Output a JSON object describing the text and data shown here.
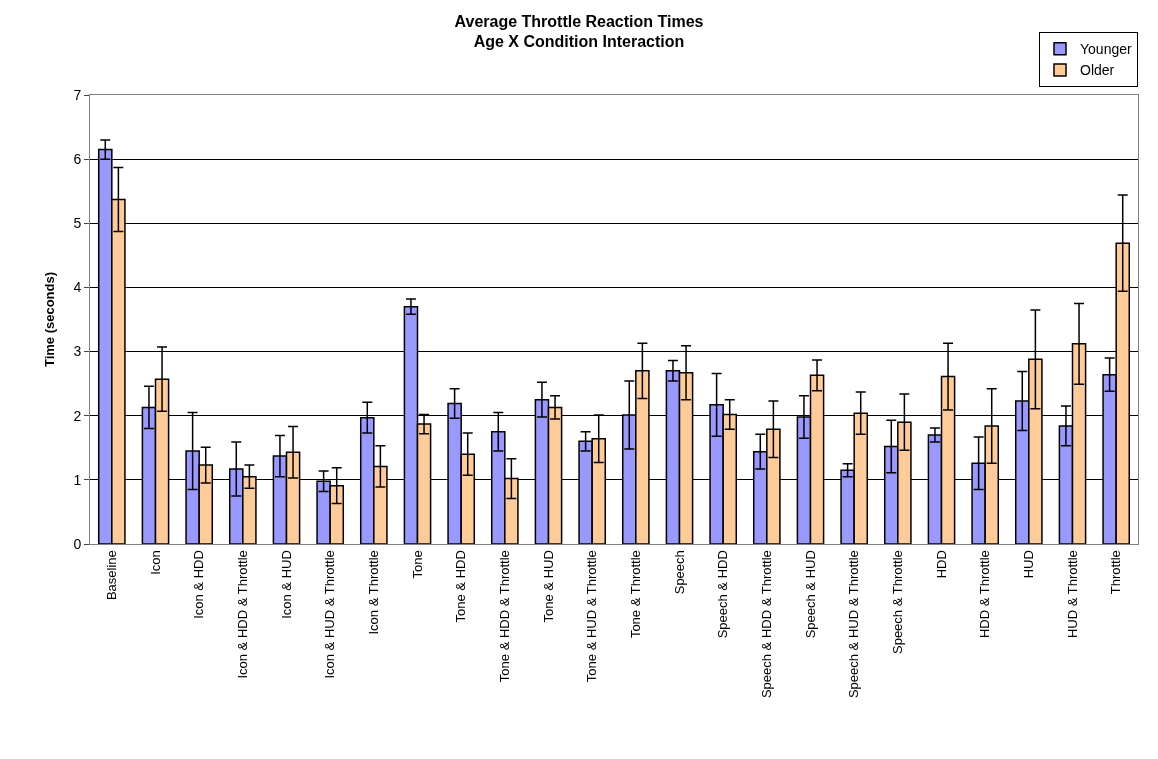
{
  "chart_data": {
    "type": "bar",
    "title": "Average Throttle Reaction Times\nAge X Condition Interaction",
    "ylabel": "Time (seconds)",
    "categories": [
      "Baseline",
      "Icon",
      "Icon & HDD",
      "Icon & HDD & Throttle",
      "Icon & HUD",
      "Icon & HUD & Throttle",
      "Icon & Throttle",
      "Tone",
      "Tone & HDD",
      "Tone & HDD & Throttle",
      "Tone & HUD",
      "Tone & HUD & Throttle",
      "Tone & Throttle",
      "Speech",
      "Speech & HDD",
      "Speech & HDD & Throttle",
      "Speech & HUD",
      "Speech & HUD & Throttle",
      "Speech & Throttle",
      "HDD",
      "HDD & Throttle",
      "HUD",
      "HUD & Throttle",
      "Throttle"
    ],
    "series": [
      {
        "name": "Younger",
        "color": "#9999ff",
        "values": [
          6.15,
          2.13,
          1.45,
          1.17,
          1.37,
          0.98,
          1.97,
          3.7,
          2.19,
          1.75,
          2.25,
          1.6,
          2.01,
          2.7,
          2.17,
          1.44,
          1.98,
          1.15,
          1.52,
          1.7,
          1.26,
          2.23,
          1.84,
          2.64
        ],
        "errors": [
          0.15,
          0.33,
          0.6,
          0.42,
          0.32,
          0.16,
          0.24,
          0.12,
          0.23,
          0.3,
          0.27,
          0.15,
          0.53,
          0.16,
          0.49,
          0.27,
          0.33,
          0.1,
          0.41,
          0.11,
          0.41,
          0.46,
          0.31,
          0.26
        ]
      },
      {
        "name": "Older",
        "color": "#ffcc99",
        "values": [
          5.37,
          2.57,
          1.23,
          1.05,
          1.43,
          0.91,
          1.21,
          1.87,
          1.4,
          1.02,
          2.13,
          1.64,
          2.7,
          2.67,
          2.02,
          1.79,
          2.63,
          2.04,
          1.9,
          2.61,
          1.84,
          2.88,
          3.12,
          4.69
        ],
        "errors": [
          0.5,
          0.5,
          0.28,
          0.18,
          0.4,
          0.28,
          0.32,
          0.15,
          0.33,
          0.31,
          0.18,
          0.37,
          0.43,
          0.42,
          0.23,
          0.44,
          0.24,
          0.33,
          0.44,
          0.52,
          0.58,
          0.77,
          0.63,
          0.75
        ]
      }
    ],
    "ylim": [
      0,
      7
    ],
    "yticks": [
      0,
      1,
      2,
      3,
      4,
      5,
      6,
      7
    ],
    "grid": "y",
    "legend": "top right"
  }
}
